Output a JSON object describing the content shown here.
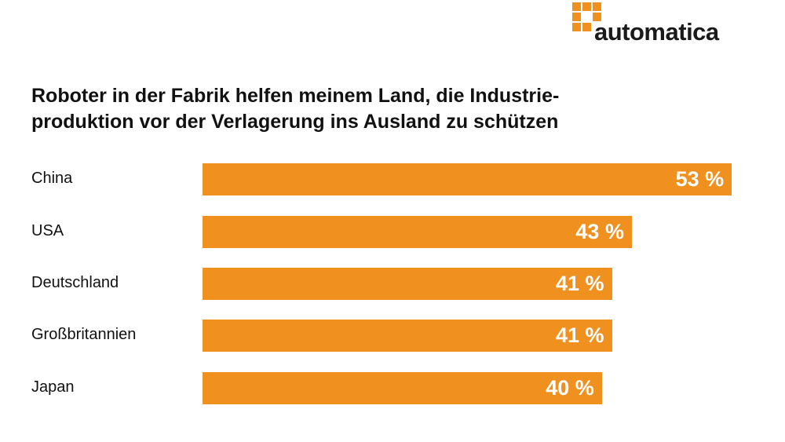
{
  "logo": {
    "text": "automatica"
  },
  "chart_data": {
    "type": "bar",
    "orientation": "horizontal",
    "title": "Roboter in der Fabrik helfen meinem Land, die Industrie-produktion vor der Verlagerung ins Ausland zu schützen",
    "title_lines": [
      "Roboter in der Fabrik helfen meinem Land, die Industrie-",
      "produktion vor der Verlagerung ins Ausland zu schützen"
    ],
    "categories": [
      "China",
      "USA",
      "Deutschland",
      "Großbritannien",
      "Japan"
    ],
    "values": [
      53,
      43,
      41,
      41,
      40
    ],
    "labels": [
      "53 %",
      "43 %",
      "41 %",
      "41 %",
      "40 %"
    ],
    "unit": "%",
    "bar_color": "#f0901e",
    "grid": false
  }
}
